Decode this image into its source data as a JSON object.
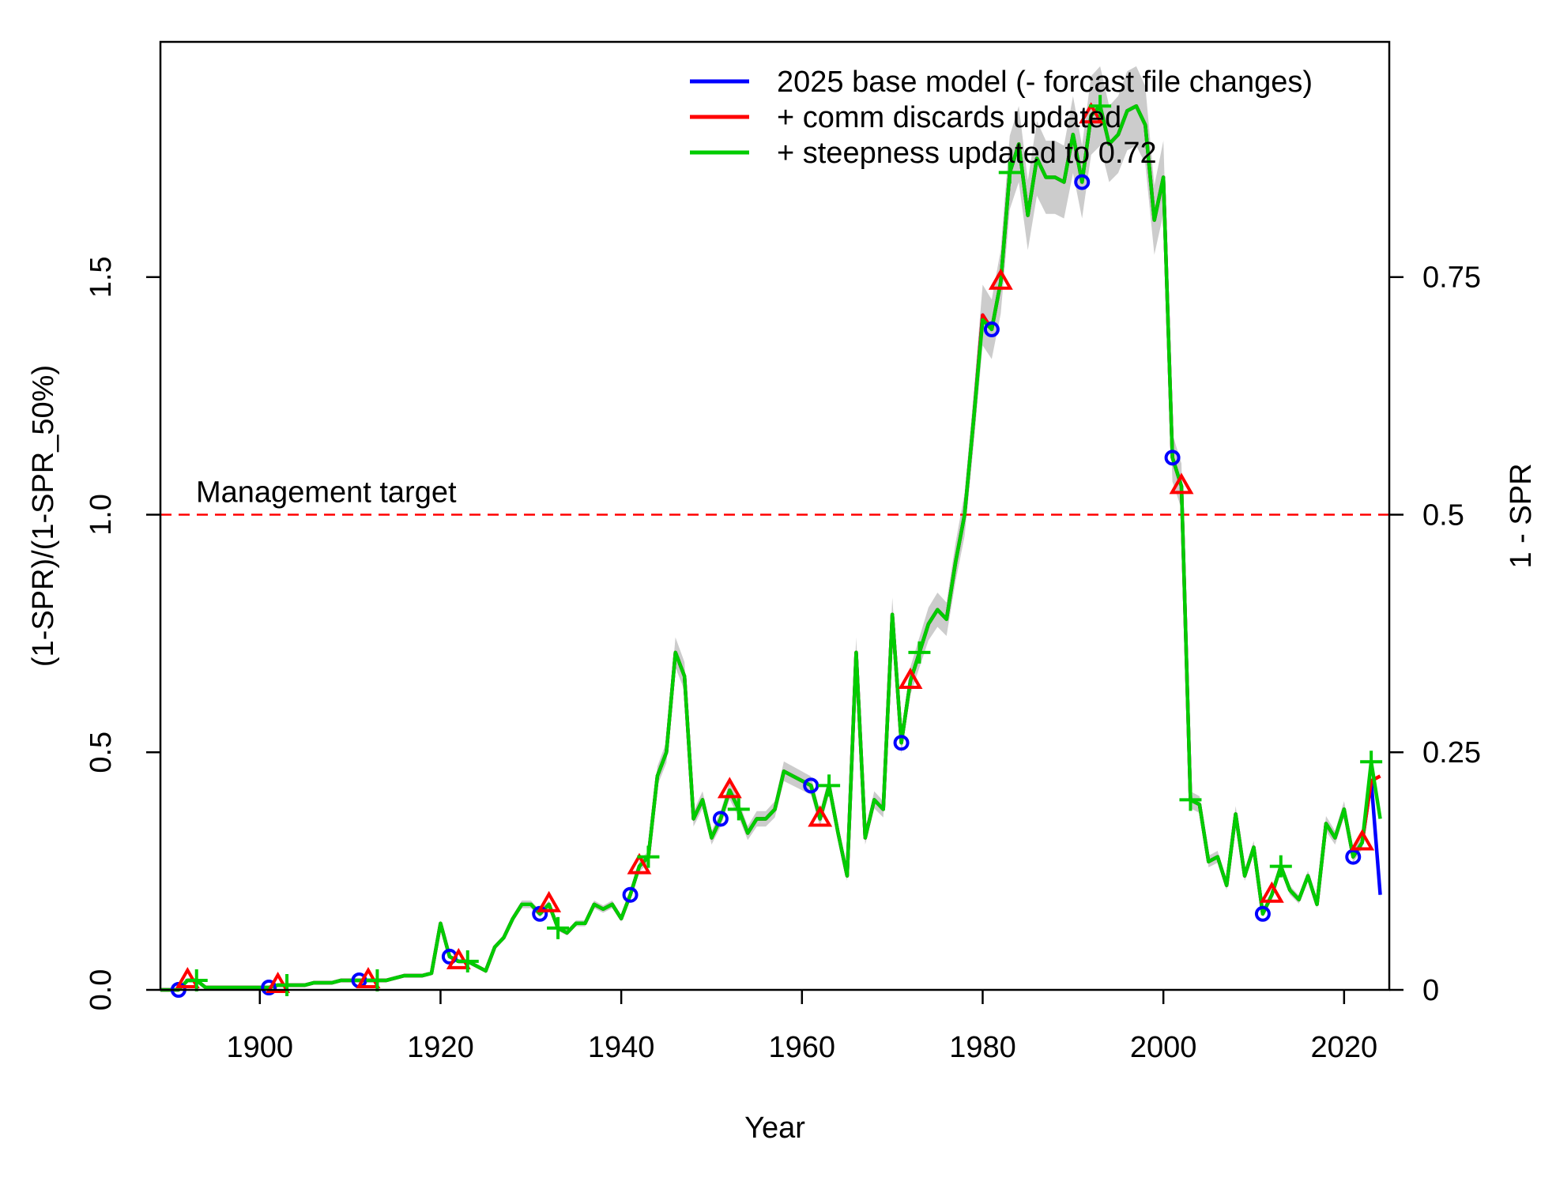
{
  "chart_data": {
    "type": "line",
    "xlabel": "Year",
    "ylabel": "(1-SPR)/(1-SPR_50%)",
    "ylabel_right": "1 - SPR",
    "xlim": [
      1889,
      2025
    ],
    "ylim": [
      0,
      1.995
    ],
    "x_ticks": [
      1900,
      1920,
      1940,
      1960,
      1980,
      2000,
      2020
    ],
    "y_ticks": [
      0.0,
      0.5,
      1.0,
      1.5
    ],
    "y_tick_labels": [
      "0.0",
      "0.5",
      "1.0",
      "1.5"
    ],
    "y2_ticks": [
      0,
      0.25,
      0.5,
      0.75
    ],
    "y2_tick_labels": [
      "0",
      "0.25",
      "0.5",
      "0.75"
    ],
    "grid": false,
    "legend_position": "top-right",
    "reference_line": {
      "y": 1.0,
      "label": "Management target",
      "color": "#ff0000",
      "style": "dashed"
    },
    "x": [
      1889,
      1890,
      1891,
      1892,
      1893,
      1894,
      1895,
      1896,
      1897,
      1898,
      1899,
      1900,
      1901,
      1902,
      1903,
      1904,
      1905,
      1906,
      1907,
      1908,
      1909,
      1910,
      1911,
      1912,
      1913,
      1914,
      1915,
      1916,
      1917,
      1918,
      1919,
      1920,
      1921,
      1922,
      1923,
      1924,
      1925,
      1926,
      1927,
      1928,
      1929,
      1930,
      1931,
      1932,
      1933,
      1934,
      1935,
      1936,
      1937,
      1938,
      1939,
      1940,
      1941,
      1942,
      1943,
      1944,
      1945,
      1946,
      1947,
      1948,
      1949,
      1950,
      1951,
      1952,
      1953,
      1954,
      1955,
      1956,
      1957,
      1958,
      1959,
      1960,
      1961,
      1962,
      1963,
      1964,
      1965,
      1966,
      1967,
      1968,
      1969,
      1970,
      1971,
      1972,
      1973,
      1974,
      1975,
      1976,
      1977,
      1978,
      1979,
      1980,
      1981,
      1982,
      1983,
      1984,
      1985,
      1986,
      1987,
      1988,
      1989,
      1990,
      1991,
      1992,
      1993,
      1994,
      1995,
      1996,
      1997,
      1998,
      1999,
      2000,
      2001,
      2002,
      2003,
      2004,
      2005,
      2006,
      2007,
      2008,
      2009,
      2010,
      2011,
      2012,
      2013,
      2014,
      2015,
      2016,
      2017,
      2018,
      2019,
      2020,
      2021,
      2022,
      2023,
      2024
    ],
    "series": [
      {
        "name": "2025 base model (- forcast file changes)",
        "color": "#0000ff",
        "marker": "circle",
        "marker_x": [
          1891,
          1901,
          1911,
          1921,
          1931,
          1941,
          1951,
          1961,
          1971,
          1981,
          1991,
          2001,
          2011,
          2021
        ],
        "values": [
          0.0,
          0.0,
          0.0,
          0.02,
          0.02,
          0.005,
          0.005,
          0.005,
          0.005,
          0.005,
          0.005,
          0.005,
          0.005,
          0.01,
          0.01,
          0.01,
          0.01,
          0.015,
          0.015,
          0.015,
          0.02,
          0.02,
          0.02,
          0.02,
          0.02,
          0.02,
          0.025,
          0.03,
          0.03,
          0.03,
          0.035,
          0.14,
          0.07,
          0.06,
          0.06,
          0.05,
          0.04,
          0.09,
          0.11,
          0.15,
          0.18,
          0.18,
          0.16,
          0.18,
          0.13,
          0.12,
          0.14,
          0.14,
          0.18,
          0.17,
          0.18,
          0.15,
          0.2,
          0.26,
          0.28,
          0.45,
          0.5,
          0.71,
          0.66,
          0.36,
          0.4,
          0.32,
          0.36,
          0.42,
          0.38,
          0.33,
          0.36,
          0.36,
          0.38,
          0.46,
          0.45,
          0.44,
          0.43,
          0.36,
          0.43,
          0.33,
          0.24,
          0.71,
          0.32,
          0.4,
          0.38,
          0.79,
          0.52,
          0.65,
          0.71,
          0.77,
          0.8,
          0.78,
          0.9,
          1.0,
          1.2,
          1.42,
          1.39,
          1.49,
          1.72,
          1.78,
          1.63,
          1.75,
          1.71,
          1.71,
          1.7,
          1.8,
          1.7,
          1.84,
          1.86,
          1.78,
          1.8,
          1.85,
          1.86,
          1.82,
          1.62,
          1.71,
          1.12,
          1.06,
          0.4,
          0.39,
          0.27,
          0.28,
          0.22,
          0.37,
          0.24,
          0.3,
          0.16,
          0.2,
          0.26,
          0.21,
          0.19,
          0.24,
          0.18,
          0.35,
          0.32,
          0.38,
          0.28,
          0.31,
          0.44,
          0.2
        ]
      },
      {
        "name": "+ comm discards updated",
        "color": "#ff0000",
        "marker": "triangle",
        "marker_x": [
          1892,
          1902,
          1912,
          1922,
          1932,
          1942,
          1952,
          1962,
          1972,
          1982,
          1992,
          2002,
          2012,
          2022
        ],
        "values": [
          0.0,
          0.0,
          0.0,
          0.02,
          0.02,
          0.005,
          0.005,
          0.005,
          0.005,
          0.005,
          0.005,
          0.005,
          0.005,
          0.01,
          0.01,
          0.01,
          0.01,
          0.015,
          0.015,
          0.015,
          0.02,
          0.02,
          0.02,
          0.02,
          0.02,
          0.02,
          0.025,
          0.03,
          0.03,
          0.03,
          0.035,
          0.14,
          0.07,
          0.06,
          0.06,
          0.05,
          0.04,
          0.09,
          0.11,
          0.15,
          0.18,
          0.18,
          0.16,
          0.18,
          0.13,
          0.12,
          0.14,
          0.14,
          0.18,
          0.17,
          0.18,
          0.15,
          0.2,
          0.26,
          0.28,
          0.45,
          0.5,
          0.71,
          0.66,
          0.36,
          0.4,
          0.32,
          0.36,
          0.42,
          0.38,
          0.33,
          0.36,
          0.36,
          0.38,
          0.46,
          0.45,
          0.44,
          0.43,
          0.36,
          0.43,
          0.33,
          0.24,
          0.71,
          0.32,
          0.4,
          0.38,
          0.79,
          0.52,
          0.65,
          0.71,
          0.77,
          0.8,
          0.78,
          0.9,
          1.0,
          1.2,
          1.42,
          1.39,
          1.49,
          1.72,
          1.78,
          1.63,
          1.75,
          1.71,
          1.71,
          1.7,
          1.8,
          1.7,
          1.84,
          1.86,
          1.78,
          1.8,
          1.85,
          1.86,
          1.82,
          1.62,
          1.71,
          1.12,
          1.06,
          0.4,
          0.39,
          0.27,
          0.28,
          0.22,
          0.37,
          0.24,
          0.3,
          0.16,
          0.2,
          0.26,
          0.21,
          0.19,
          0.24,
          0.18,
          0.35,
          0.32,
          0.38,
          0.28,
          0.31,
          0.44,
          0.45
        ]
      },
      {
        "name": "+ steepness updated to 0.72",
        "color": "#00cc00",
        "marker": "plus",
        "marker_x": [
          1893,
          1903,
          1913,
          1923,
          1933,
          1943,
          1953,
          1963,
          1973,
          1983,
          1993,
          2003,
          2013,
          2023
        ],
        "values": [
          0.0,
          0.0,
          0.0,
          0.02,
          0.02,
          0.005,
          0.005,
          0.005,
          0.005,
          0.005,
          0.005,
          0.005,
          0.005,
          0.01,
          0.01,
          0.01,
          0.01,
          0.015,
          0.015,
          0.015,
          0.02,
          0.02,
          0.02,
          0.02,
          0.02,
          0.02,
          0.025,
          0.03,
          0.03,
          0.03,
          0.035,
          0.14,
          0.07,
          0.06,
          0.06,
          0.05,
          0.04,
          0.09,
          0.11,
          0.15,
          0.18,
          0.18,
          0.16,
          0.18,
          0.13,
          0.12,
          0.14,
          0.14,
          0.18,
          0.17,
          0.18,
          0.15,
          0.2,
          0.26,
          0.28,
          0.45,
          0.5,
          0.71,
          0.66,
          0.36,
          0.4,
          0.32,
          0.36,
          0.42,
          0.38,
          0.33,
          0.36,
          0.36,
          0.38,
          0.46,
          0.45,
          0.44,
          0.43,
          0.36,
          0.43,
          0.33,
          0.24,
          0.71,
          0.32,
          0.4,
          0.38,
          0.79,
          0.52,
          0.65,
          0.71,
          0.77,
          0.8,
          0.78,
          0.9,
          1.0,
          1.2,
          1.41,
          1.39,
          1.49,
          1.72,
          1.78,
          1.63,
          1.75,
          1.71,
          1.71,
          1.7,
          1.8,
          1.7,
          1.84,
          1.86,
          1.78,
          1.8,
          1.85,
          1.86,
          1.82,
          1.62,
          1.71,
          1.12,
          1.06,
          0.4,
          0.39,
          0.27,
          0.28,
          0.22,
          0.37,
          0.24,
          0.3,
          0.16,
          0.2,
          0.26,
          0.21,
          0.19,
          0.24,
          0.18,
          0.35,
          0.32,
          0.38,
          0.28,
          0.31,
          0.48,
          0.36
        ]
      }
    ],
    "uncertainty_band_color": "#cccccc"
  }
}
